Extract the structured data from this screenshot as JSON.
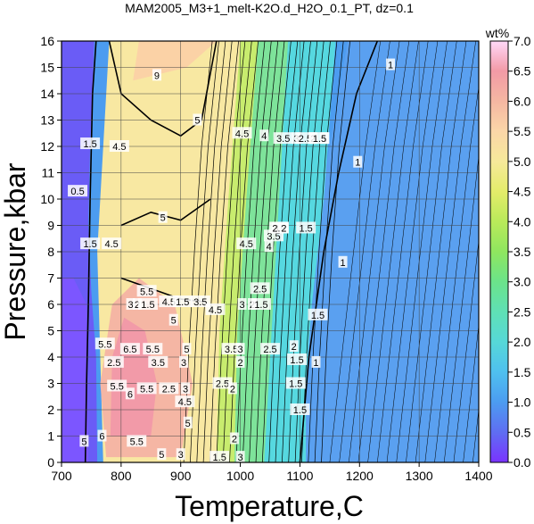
{
  "chart_data": {
    "type": "heatmap",
    "title": "MAM2005_M3+1_melt-K2O.d_H2O_0.1_PT, dz=0.1",
    "xlabel": "Temperature,C",
    "ylabel": "Pressure,kbar",
    "xlim": [
      700,
      1400
    ],
    "ylim": [
      0,
      16
    ],
    "xticks": [
      "700",
      "800",
      "900",
      "1000",
      "1100",
      "1200",
      "1300",
      "1400"
    ],
    "yticks": [
      "0",
      "1",
      "2",
      "3",
      "4",
      "5",
      "6",
      "7",
      "8",
      "9",
      "10",
      "11",
      "12",
      "13",
      "14",
      "15",
      "16"
    ],
    "grid": true,
    "colorbar": {
      "label": "wt%",
      "range": [
        0,
        7
      ],
      "ticks": [
        "0.0",
        "0.5",
        "1.0",
        "1.5",
        "2.0",
        "2.5",
        "3.0",
        "3.5",
        "4.0",
        "4.5",
        "5.0",
        "5.5",
        "6.0",
        "6.5",
        "7.0"
      ],
      "colors": [
        "#7a33ff",
        "#5f6df2",
        "#4c9cf0",
        "#4fc0ef",
        "#56d8d8",
        "#5fe0b5",
        "#6be38a",
        "#8fe65f",
        "#b9ea5a",
        "#e4ec6a",
        "#f6e99a",
        "#fbd6a8",
        "#f5b7a2",
        "#f29aa6",
        "#ffd8f8"
      ]
    },
    "contour_labels": [
      {
        "text": "9",
        "x": 860,
        "y": 14.7
      },
      {
        "text": "5",
        "x": 928,
        "y": 13.0
      },
      {
        "text": "5",
        "x": 870,
        "y": 9.3
      },
      {
        "text": "5.5",
        "x": 843,
        "y": 6.5
      },
      {
        "text": "5",
        "x": 888,
        "y": 5.4
      },
      {
        "text": "5",
        "x": 912,
        "y": 1.5
      },
      {
        "text": "4.5",
        "x": 1003,
        "y": 12.5
      },
      {
        "text": "4",
        "x": 1040,
        "y": 12.4
      },
      {
        "text": "3.5",
        "x": 1072,
        "y": 12.3
      },
      {
        "text": "3",
        "x": 1094,
        "y": 12.3
      },
      {
        "text": "2.5",
        "x": 1109,
        "y": 12.3
      },
      {
        "text": "2",
        "x": 1122,
        "y": 12.3
      },
      {
        "text": "1",
        "x": 1141,
        "y": 12.3
      },
      {
        "text": "1.5",
        "x": 1133,
        "y": 12.3
      },
      {
        "text": "1",
        "x": 1197,
        "y": 11.4
      },
      {
        "text": "1",
        "x": 1252,
        "y": 15.1
      },
      {
        "text": "1",
        "x": 1172,
        "y": 7.6
      },
      {
        "text": "1",
        "x": 1127,
        "y": 3.8
      },
      {
        "text": "1.5",
        "x": 1130,
        "y": 5.6
      },
      {
        "text": "1.5",
        "x": 1100,
        "y": 2.0
      },
      {
        "text": "2",
        "x": 1090,
        "y": 4.4
      },
      {
        "text": "2",
        "x": 990,
        "y": 0.9
      },
      {
        "text": "4.5",
        "x": 1010,
        "y": 8.3
      },
      {
        "text": "4",
        "x": 1048,
        "y": 8.2
      },
      {
        "text": "3.5",
        "x": 1056,
        "y": 8.6
      },
      {
        "text": "3",
        "x": 1060,
        "y": 8.9
      },
      {
        "text": "2.5",
        "x": 1065,
        "y": 8.9
      },
      {
        "text": "2",
        "x": 1073,
        "y": 8.9
      },
      {
        "text": "1.5",
        "x": 1110,
        "y": 8.9
      },
      {
        "text": "0.5",
        "x": 727,
        "y": 10.3
      },
      {
        "text": "1.5",
        "x": 748,
        "y": 12.1
      },
      {
        "text": "4.5",
        "x": 797,
        "y": 12.0
      },
      {
        "text": "1.5",
        "x": 748,
        "y": 8.3
      },
      {
        "text": "4.5",
        "x": 784,
        "y": 8.3
      },
      {
        "text": "3",
        "x": 816,
        "y": 6.0
      },
      {
        "text": "2",
        "x": 827,
        "y": 6.0
      },
      {
        "text": "1.5",
        "x": 845,
        "y": 6.0
      },
      {
        "text": "4.5",
        "x": 880,
        "y": 6.1
      },
      {
        "text": "1.5",
        "x": 903,
        "y": 6.1
      },
      {
        "text": "3.5",
        "x": 933,
        "y": 6.1
      },
      {
        "text": "4.5",
        "x": 958,
        "y": 5.8
      },
      {
        "text": "3",
        "x": 1003,
        "y": 6.0
      },
      {
        "text": "2",
        "x": 1020,
        "y": 6.0
      },
      {
        "text": "1.5",
        "x": 1035,
        "y": 6.0
      },
      {
        "text": "2.5",
        "x": 1033,
        "y": 6.6
      },
      {
        "text": "5.5",
        "x": 773,
        "y": 4.5
      },
      {
        "text": "6.5",
        "x": 815,
        "y": 4.3
      },
      {
        "text": "5.5",
        "x": 853,
        "y": 4.3
      },
      {
        "text": "5",
        "x": 910,
        "y": 4.3
      },
      {
        "text": "3.5",
        "x": 985,
        "y": 4.3
      },
      {
        "text": "3",
        "x": 1000,
        "y": 4.3
      },
      {
        "text": "2.5",
        "x": 1050,
        "y": 4.3
      },
      {
        "text": "2.5",
        "x": 788,
        "y": 3.8
      },
      {
        "text": "3.5",
        "x": 862,
        "y": 3.8
      },
      {
        "text": "3",
        "x": 905,
        "y": 3.8
      },
      {
        "text": "2",
        "x": 1000,
        "y": 3.8
      },
      {
        "text": "1.5",
        "x": 1095,
        "y": 3.9
      },
      {
        "text": "5.5",
        "x": 793,
        "y": 2.9
      },
      {
        "text": "6",
        "x": 815,
        "y": 2.6
      },
      {
        "text": "5.5",
        "x": 843,
        "y": 2.8
      },
      {
        "text": "2.5",
        "x": 880,
        "y": 2.8
      },
      {
        "text": "3",
        "x": 908,
        "y": 2.8
      },
      {
        "text": "2.5",
        "x": 970,
        "y": 3.0
      },
      {
        "text": "2",
        "x": 987,
        "y": 2.8
      },
      {
        "text": "1.5",
        "x": 1093,
        "y": 3.0
      },
      {
        "text": "4.5",
        "x": 907,
        "y": 2.3
      },
      {
        "text": "5.5",
        "x": 826,
        "y": 0.8
      },
      {
        "text": "6",
        "x": 768,
        "y": 1.0
      },
      {
        "text": "5",
        "x": 738,
        "y": 0.8
      },
      {
        "text": "5",
        "x": 868,
        "y": 0.3
      },
      {
        "text": "3",
        "x": 900,
        "y": 0.3
      },
      {
        "text": "3",
        "x": 1000,
        "y": 0.2
      },
      {
        "text": "1.5",
        "x": 965,
        "y": 0.2
      }
    ]
  }
}
